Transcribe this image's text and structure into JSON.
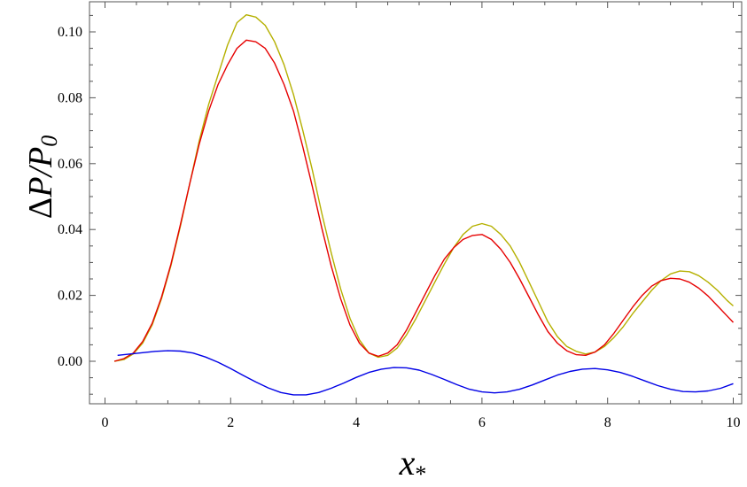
{
  "chart_data": {
    "type": "line",
    "title": "",
    "xlabel": "x",
    "xlabel_subscript": "*",
    "ylabel_delta": "Δ",
    "ylabel_rest": "P/P",
    "ylabel_subscript": "0",
    "xlim": [
      0,
      10
    ],
    "ylim": [
      -0.015,
      0.108
    ],
    "xticks": [
      0,
      2,
      4,
      6,
      8,
      10
    ],
    "xtick_labels": [
      "0",
      "2",
      "4",
      "6",
      "8",
      "10"
    ],
    "yticks": [
      0.0,
      0.02,
      0.04,
      0.06,
      0.08,
      0.1
    ],
    "ytick_labels": [
      "0.00",
      "0.02",
      "0.04",
      "0.06",
      "0.08",
      "0.10"
    ],
    "grid": false,
    "legend": "none",
    "series": [
      {
        "color": "#b5b000",
        "x": [
          0.15,
          0.3,
          0.45,
          0.6,
          0.75,
          0.9,
          1.05,
          1.2,
          1.35,
          1.5,
          1.65,
          1.8,
          1.95,
          2.1,
          2.25,
          2.4,
          2.55,
          2.7,
          2.85,
          3.0,
          3.15,
          3.3,
          3.45,
          3.6,
          3.75,
          3.9,
          4.05,
          4.2,
          4.35,
          4.5,
          4.65,
          4.8,
          4.95,
          5.1,
          5.25,
          5.4,
          5.55,
          5.7,
          5.85,
          6.0,
          6.15,
          6.3,
          6.45,
          6.6,
          6.75,
          6.9,
          7.05,
          7.2,
          7.35,
          7.5,
          7.65,
          7.8,
          7.95,
          8.1,
          8.25,
          8.4,
          8.55,
          8.7,
          8.85,
          9.0,
          9.15,
          9.3,
          9.45,
          9.6,
          9.75,
          9.9,
          10.0
        ],
        "values": [
          0.0,
          0.0005,
          0.0022,
          0.0055,
          0.011,
          0.019,
          0.029,
          0.041,
          0.054,
          0.067,
          0.078,
          0.087,
          0.096,
          0.1028,
          0.1052,
          0.1045,
          0.102,
          0.097,
          0.09,
          0.081,
          0.07,
          0.058,
          0.045,
          0.033,
          0.022,
          0.013,
          0.0065,
          0.0025,
          0.0012,
          0.0018,
          0.004,
          0.008,
          0.013,
          0.0185,
          0.024,
          0.0295,
          0.0345,
          0.0385,
          0.041,
          0.0418,
          0.041,
          0.0385,
          0.035,
          0.03,
          0.024,
          0.018,
          0.012,
          0.0075,
          0.0045,
          0.003,
          0.0022,
          0.0028,
          0.0045,
          0.0072,
          0.0105,
          0.0145,
          0.018,
          0.0215,
          0.0245,
          0.0265,
          0.0274,
          0.0272,
          0.026,
          0.024,
          0.0215,
          0.0185,
          0.0168
        ]
      },
      {
        "color": "#e60000",
        "x": [
          0.15,
          0.3,
          0.45,
          0.6,
          0.75,
          0.9,
          1.05,
          1.2,
          1.35,
          1.5,
          1.65,
          1.8,
          1.95,
          2.1,
          2.25,
          2.4,
          2.55,
          2.7,
          2.85,
          3.0,
          3.15,
          3.3,
          3.45,
          3.6,
          3.75,
          3.9,
          4.05,
          4.2,
          4.35,
          4.5,
          4.65,
          4.8,
          4.95,
          5.1,
          5.25,
          5.4,
          5.55,
          5.7,
          5.85,
          6.0,
          6.15,
          6.3,
          6.45,
          6.6,
          6.75,
          6.9,
          7.05,
          7.2,
          7.35,
          7.5,
          7.65,
          7.8,
          7.95,
          8.1,
          8.25,
          8.4,
          8.55,
          8.7,
          8.85,
          9.0,
          9.15,
          9.3,
          9.45,
          9.6,
          9.75,
          9.9,
          10.0
        ],
        "values": [
          0.0,
          0.0008,
          0.0025,
          0.006,
          0.0115,
          0.0195,
          0.0295,
          0.0415,
          0.054,
          0.066,
          0.076,
          0.084,
          0.09,
          0.095,
          0.0975,
          0.097,
          0.095,
          0.0905,
          0.084,
          0.076,
          0.065,
          0.053,
          0.0405,
          0.029,
          0.019,
          0.011,
          0.0055,
          0.0025,
          0.0015,
          0.0025,
          0.005,
          0.0095,
          0.015,
          0.0205,
          0.026,
          0.031,
          0.0345,
          0.037,
          0.0382,
          0.0385,
          0.037,
          0.034,
          0.03,
          0.025,
          0.0195,
          0.014,
          0.009,
          0.0055,
          0.0032,
          0.002,
          0.0018,
          0.0028,
          0.005,
          0.0085,
          0.0125,
          0.0165,
          0.02,
          0.0228,
          0.0245,
          0.0252,
          0.025,
          0.024,
          0.0222,
          0.0198,
          0.0168,
          0.0138,
          0.0118
        ]
      },
      {
        "color": "#0000e6",
        "x": [
          0.2,
          0.4,
          0.6,
          0.8,
          1.0,
          1.2,
          1.4,
          1.6,
          1.8,
          2.0,
          2.2,
          2.4,
          2.6,
          2.8,
          3.0,
          3.2,
          3.4,
          3.6,
          3.8,
          4.0,
          4.2,
          4.4,
          4.6,
          4.8,
          5.0,
          5.2,
          5.4,
          5.6,
          5.8,
          6.0,
          6.2,
          6.4,
          6.6,
          6.8,
          7.0,
          7.2,
          7.4,
          7.6,
          7.8,
          8.0,
          8.2,
          8.4,
          8.6,
          8.8,
          9.0,
          9.2,
          9.4,
          9.6,
          9.8,
          10.0
        ],
        "values": [
          0.0018,
          0.0022,
          0.0026,
          0.003,
          0.0032,
          0.0031,
          0.0025,
          0.0013,
          -0.0003,
          -0.0022,
          -0.0043,
          -0.0063,
          -0.0081,
          -0.0095,
          -0.0102,
          -0.0102,
          -0.0095,
          -0.0082,
          -0.0066,
          -0.0049,
          -0.0034,
          -0.0024,
          -0.0019,
          -0.002,
          -0.0027,
          -0.004,
          -0.0055,
          -0.0071,
          -0.0085,
          -0.0093,
          -0.0096,
          -0.0093,
          -0.0085,
          -0.0072,
          -0.0057,
          -0.0042,
          -0.0031,
          -0.0024,
          -0.0022,
          -0.0026,
          -0.0034,
          -0.0046,
          -0.006,
          -0.0074,
          -0.0085,
          -0.0092,
          -0.0093,
          -0.009,
          -0.0082,
          -0.0068
        ]
      }
    ]
  }
}
